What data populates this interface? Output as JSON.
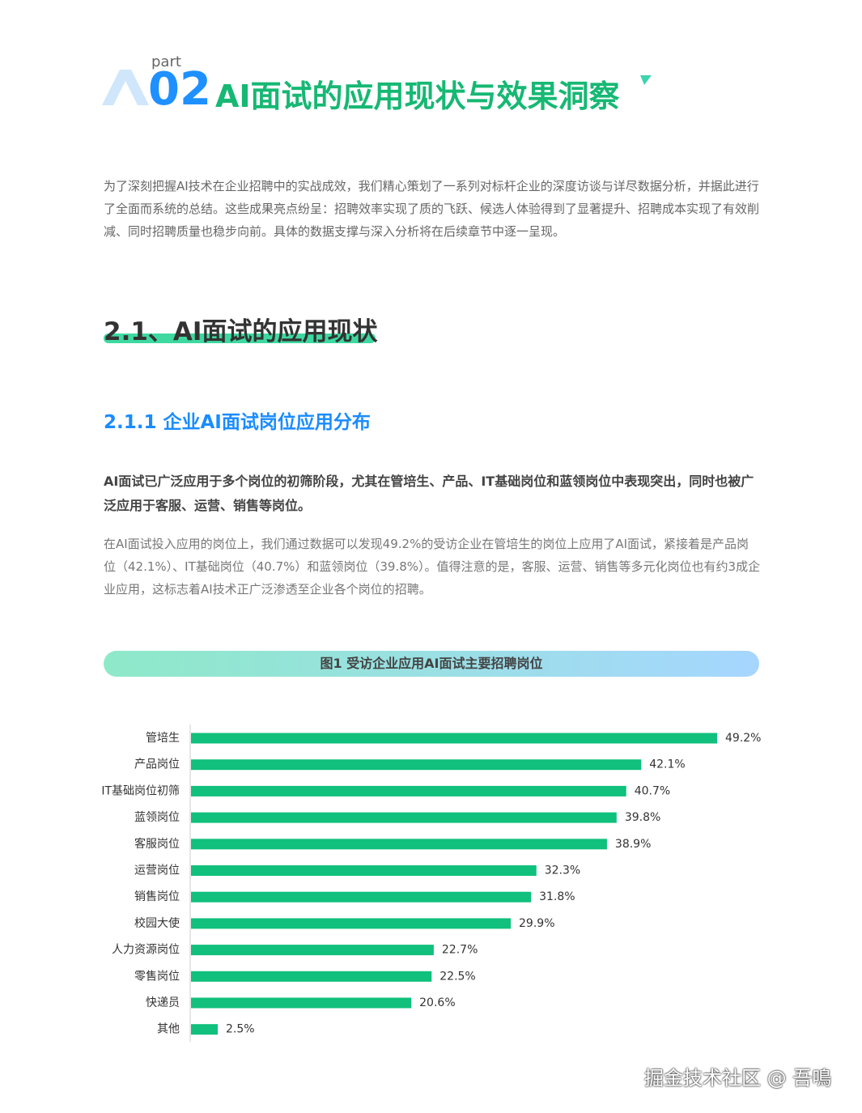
{
  "header": {
    "part_label": "part",
    "number": "02",
    "title": "AI面试的应用现状与效果洞察"
  },
  "intro": "为了深刻把握AI技术在企业招聘中的实战成效，我们精心策划了一系列对标杆企业的深度访谈与详尽数据分析，并据此进行了全面而系统的总结。这些成果亮点纷呈：招聘效率实现了质的飞跃、候选人体验得到了显著提升、招聘成本实现了有效削减、同时招聘质量也稳步向前。具体的数据支撑与深入分析将在后续章节中逐一呈现。",
  "section": {
    "heading": "2.1、AI面试的应用现状",
    "subheading": "2.1.1 企业AI面试岗位应用分布",
    "lead": "AI面试已广泛应用于多个岗位的初筛阶段，尤其在管培生、产品、IT基础岗位和蓝领岗位中表现突出，同时也被广泛应用于客服、运营、销售等岗位。",
    "body": "在AI面试投入应用的岗位上，我们通过数据可以发现49.2%的受访企业在管培生的岗位上应用了AI面试，紧接着是产品岗位（42.1%）、IT基础岗位（40.7%）和蓝领岗位（39.8%）。值得注意的是，客服、运营、销售等多元化岗位也有约3成企业应用，这标志着AI技术正广泛渗透至企业各个岗位的招聘。"
  },
  "chart_data": {
    "type": "hbar",
    "title": "图1 受访企业应用AI面试主要招聘岗位",
    "color": "#10c07c",
    "categories": [
      "管培生",
      "产品岗位",
      "IT基础岗位初筛",
      "蓝领岗位",
      "客服岗位",
      "运营岗位",
      "销售岗位",
      "校园大使",
      "人力资源岗位",
      "零售岗位",
      "快递员",
      "其他"
    ],
    "values": [
      49.2,
      42.1,
      40.7,
      39.8,
      38.9,
      32.3,
      31.8,
      29.9,
      22.7,
      22.5,
      20.6,
      2.5
    ],
    "value_labels": [
      "49.2%",
      "42.1%",
      "40.7%",
      "39.8%",
      "38.9%",
      "32.3%",
      "31.8%",
      "29.9%",
      "22.7%",
      "22.5%",
      "20.6%",
      "2.5%"
    ]
  },
  "watermark": "掘金技术社区 @ 吾鳴"
}
